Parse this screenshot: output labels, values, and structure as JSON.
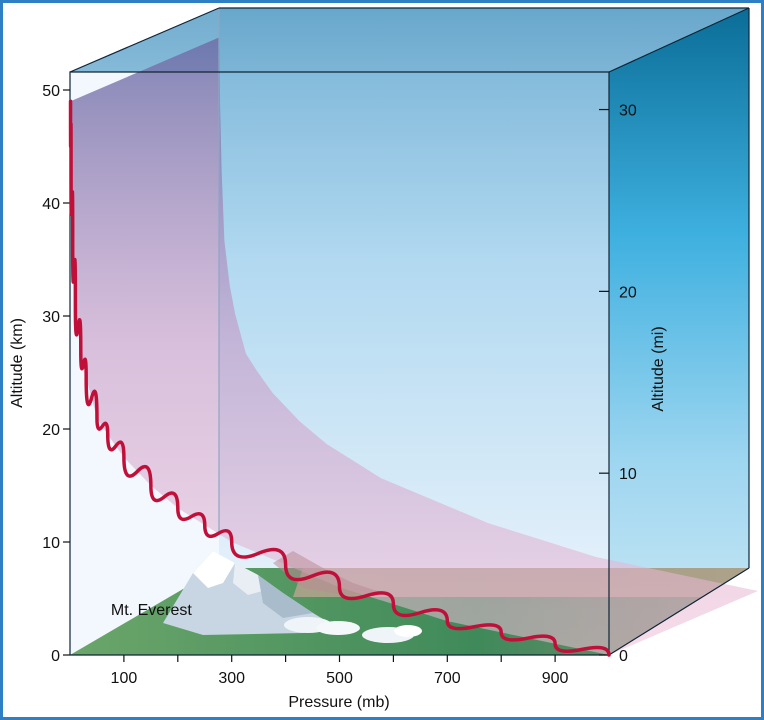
{
  "chart_data": {
    "type": "line",
    "title": "",
    "xlabel": "Pressure (mb)",
    "ylabel": "Altitude (km)",
    "ylabel_right": "Altitude (mi)",
    "xlim": [
      0,
      1000
    ],
    "ylim": [
      0,
      50
    ],
    "ylim_right_mi": [
      0,
      31
    ],
    "x_ticks": [
      100,
      300,
      500,
      700,
      900
    ],
    "y_ticks_km": [
      0,
      10,
      20,
      30,
      40,
      50
    ],
    "y_ticks_mi": [
      0,
      10,
      20,
      30
    ],
    "grid": false,
    "series": [
      {
        "color": "#c0103a",
        "points": [
          [
            1,
            49
          ],
          [
            2,
            43
          ],
          [
            5,
            37
          ],
          [
            10,
            31
          ],
          [
            20,
            27
          ],
          [
            30,
            24.5
          ],
          [
            50,
            21
          ],
          [
            70,
            19.5
          ],
          [
            100,
            17.5
          ],
          [
            150,
            15
          ],
          [
            200,
            13
          ],
          [
            250,
            11.5
          ],
          [
            300,
            10
          ],
          [
            400,
            8
          ],
          [
            500,
            6
          ],
          [
            600,
            4.5
          ],
          [
            700,
            3
          ],
          [
            800,
            2
          ],
          [
            900,
            1
          ],
          [
            1000,
            0
          ]
        ]
      }
    ],
    "annotations": [
      {
        "text": "Mt. Everest",
        "x": 280,
        "y": 2.5
      }
    ]
  }
}
